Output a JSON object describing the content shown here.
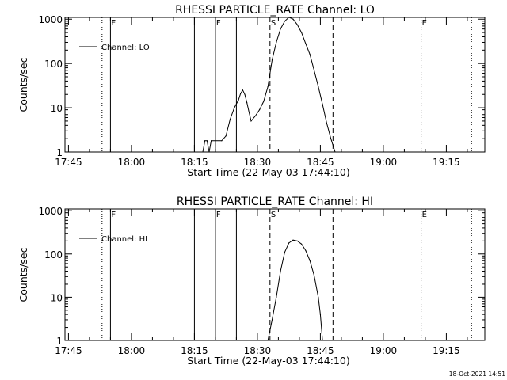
{
  "chart_data": [
    {
      "type": "line",
      "title": "RHESSI PARTICLE_RATE Channel: LO",
      "xlabel": "Start Time (22-May-03 17:44:10)",
      "ylabel": "Counts/sec",
      "yscale": "log",
      "ylim": [
        1,
        1000
      ],
      "xlim": [
        "17:44:10",
        "19:24:10"
      ],
      "x_ticks": [
        "17:45",
        "18:00",
        "18:15",
        "18:30",
        "18:45",
        "19:00",
        "19:15"
      ],
      "y_ticks": [
        "1",
        "10",
        "100",
        "1000"
      ],
      "legend": {
        "position": "top-left",
        "entries": [
          "Channel: LO"
        ]
      },
      "markers": [
        {
          "time": "17:53",
          "style": "dotted",
          "label": ""
        },
        {
          "time": "17:55",
          "style": "solid",
          "label": "F"
        },
        {
          "time": "18:15",
          "style": "solid",
          "label": ""
        },
        {
          "time": "18:20",
          "style": "solid",
          "label": "F"
        },
        {
          "time": "18:25",
          "style": "solid",
          "label": ""
        },
        {
          "time": "18:33",
          "style": "dashed",
          "label": "S"
        },
        {
          "time": "18:48",
          "style": "dashed",
          "label": ""
        },
        {
          "time": "19:09",
          "style": "dotted",
          "label": "E"
        },
        {
          "time": "19:21",
          "style": "dotted",
          "label": ""
        }
      ],
      "series": [
        {
          "name": "Channel: LO",
          "points": [
            [
              "18:17:00",
              1
            ],
            [
              "18:17:30",
              1.8
            ],
            [
              "18:18:00",
              1.8
            ],
            [
              "18:18:30",
              1
            ],
            [
              "18:19:00",
              1.8
            ],
            [
              "18:21:30",
              1.8
            ],
            [
              "18:22:30",
              2.3
            ],
            [
              "18:23:30",
              5.5
            ],
            [
              "18:24:30",
              10
            ],
            [
              "18:25:30",
              15
            ],
            [
              "18:26:00",
              21
            ],
            [
              "18:26:30",
              25
            ],
            [
              "18:27:00",
              20
            ],
            [
              "18:27:30",
              13
            ],
            [
              "18:28:00",
              8
            ],
            [
              "18:28:30",
              5
            ],
            [
              "18:29:30",
              6.5
            ],
            [
              "18:30:30",
              9
            ],
            [
              "18:31:30",
              14
            ],
            [
              "18:32:30",
              30
            ],
            [
              "18:33:30",
              120
            ],
            [
              "18:34:30",
              300
            ],
            [
              "18:35:30",
              600
            ],
            [
              "18:36:30",
              900
            ],
            [
              "18:37:30",
              1100
            ],
            [
              "18:38:30",
              1000
            ],
            [
              "18:39:30",
              750
            ],
            [
              "18:40:30",
              500
            ],
            [
              "18:41:30",
              280
            ],
            [
              "18:42:30",
              160
            ],
            [
              "18:43:30",
              70
            ],
            [
              "18:44:30",
              30
            ],
            [
              "18:45:30",
              12
            ],
            [
              "18:46:30",
              4.5
            ],
            [
              "18:47:30",
              2
            ],
            [
              "18:48:30",
              1
            ]
          ]
        }
      ]
    },
    {
      "type": "line",
      "title": "RHESSI PARTICLE_RATE Channel: HI",
      "xlabel": "Start Time (22-May-03 17:44:10)",
      "ylabel": "Counts/sec",
      "yscale": "log",
      "ylim": [
        1,
        1000
      ],
      "xlim": [
        "17:44:10",
        "19:24:10"
      ],
      "x_ticks": [
        "17:45",
        "18:00",
        "18:15",
        "18:30",
        "18:45",
        "19:00",
        "19:15"
      ],
      "y_ticks": [
        "1",
        "10",
        "100",
        "1000"
      ],
      "legend": {
        "position": "top-left",
        "entries": [
          "Channel: HI"
        ]
      },
      "markers": [
        {
          "time": "17:53",
          "style": "dotted",
          "label": ""
        },
        {
          "time": "17:55",
          "style": "solid",
          "label": "F"
        },
        {
          "time": "18:15",
          "style": "solid",
          "label": ""
        },
        {
          "time": "18:20",
          "style": "solid",
          "label": "F"
        },
        {
          "time": "18:25",
          "style": "solid",
          "label": ""
        },
        {
          "time": "18:33",
          "style": "dashed",
          "label": "S"
        },
        {
          "time": "18:48",
          "style": "dashed",
          "label": ""
        },
        {
          "time": "19:09",
          "style": "dotted",
          "label": "E"
        },
        {
          "time": "19:21",
          "style": "dotted",
          "label": ""
        }
      ],
      "series": [
        {
          "name": "Channel: HI",
          "points": [
            [
              "18:32:30",
              1
            ],
            [
              "18:33:30",
              3
            ],
            [
              "18:34:30",
              10
            ],
            [
              "18:35:30",
              40
            ],
            [
              "18:36:30",
              110
            ],
            [
              "18:37:30",
              180
            ],
            [
              "18:38:30",
              210
            ],
            [
              "18:39:30",
              200
            ],
            [
              "18:40:30",
              170
            ],
            [
              "18:41:30",
              120
            ],
            [
              "18:42:30",
              70
            ],
            [
              "18:43:30",
              32
            ],
            [
              "18:44:30",
              10
            ],
            [
              "18:45:00",
              4
            ],
            [
              "18:45:30",
              1
            ]
          ]
        }
      ]
    }
  ],
  "footer": {
    "timestamp": "18-Oct-2021 14:51"
  }
}
